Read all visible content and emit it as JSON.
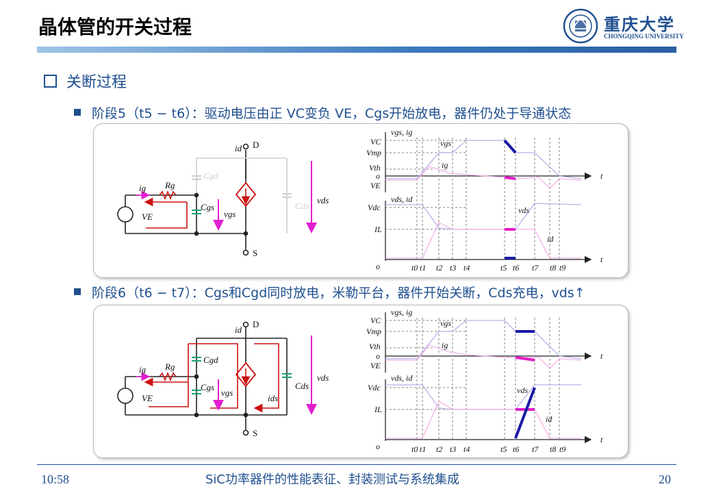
{
  "slide": {
    "title": "晶体管的开关过程",
    "logo": {
      "name_cn": "重庆大学",
      "name_en": "CHONGQING UNIVERSITY"
    },
    "section": "关断过程",
    "bullet1": "阶段5（t5 − t6）：驱动电压由正 VC变负 VE，Cgs开始放电，器件仍处于导通状态",
    "bullet2": "阶段6（t6 − t7）：Cgs和Cgd同时放电，米勒平台，器件开始关断，Cds充电，vds↑",
    "footer": {
      "time": "10:58",
      "subtitle": "SiC功率器件的性能表征、封装测试与系统集成",
      "page": "20"
    }
  },
  "circuit_labels": {
    "drain": "D",
    "source": "S",
    "id": "id",
    "ig": "ig",
    "rg": "Rg",
    "ve": "VE",
    "cgs": "Cgs",
    "cgd": "Cgd",
    "cds": "Cds",
    "vgs": "vgs",
    "vds": "vds",
    "ids": "ids"
  },
  "waveform_labels": {
    "top_axis": "vgs, ig",
    "vc": "VC",
    "vmp": "Vmp",
    "vth": "Vth",
    "zero": "o",
    "ve": "VE",
    "vgs": "vgs",
    "ig": "ig",
    "t": "t",
    "bottom_axis": "vds, id",
    "vdc": "Vdc",
    "il": "IL",
    "vds": "vds",
    "id": "id",
    "ticks": [
      "t0",
      "t1",
      "t2",
      "t3",
      "t4",
      "t5",
      "t6",
      "t7",
      "t8",
      "t9"
    ]
  },
  "colors": {
    "accent": "#1f4f8f",
    "arrow_magenta": "#e020d0",
    "loop_red": "#cc1111",
    "highlight_blue": "#1a1aa8",
    "highlight_magenta": "#e020c8"
  }
}
